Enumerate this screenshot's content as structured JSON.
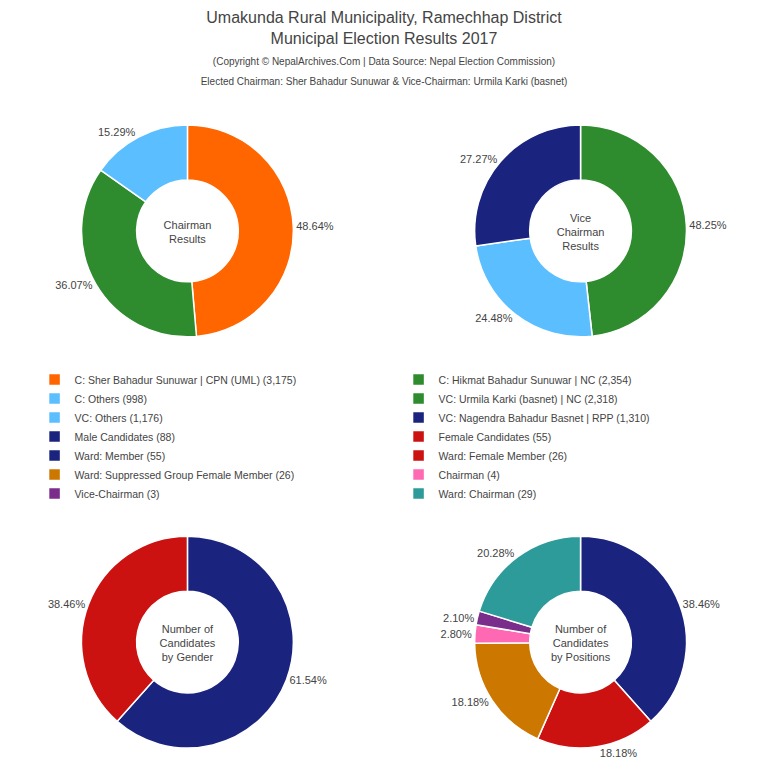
{
  "title": "Umakunda Rural Municipality, Ramechhap District\nMunicipal Election Results 2017",
  "subtitle": "(Copyright © NepalArchives.Com | Data Source: Nepal Election Commission)\nElected Chairman: Sher Bahadur Sunuwar & Vice-Chairman: Urmila Karki (basnet)",
  "legend": "center",
  "chart_data": [
    {
      "type": "pie",
      "title": "Chairman\nResults",
      "categories": [
        "C: Sher Bahadur Sunuwar | CPN (UML) (3,175)",
        "C: Hikmat Bahadur Sunuwar | NC (2,354)",
        "C: Others (998)"
      ],
      "values": [
        48.64,
        36.07,
        15.29
      ],
      "value_labels": [
        "48.64%",
        "36.07%",
        "15.29%"
      ],
      "colors": [
        "#ff6600",
        "#2e8b2e",
        "#5bbfff"
      ],
      "data_labels": true
    },
    {
      "type": "pie",
      "title": "Vice\nChairman\nResults",
      "categories": [
        "VC: Urmila Karki (basnet) | NC (2,318)",
        "VC: Others (1,176)",
        "VC: Nagendra Bahadur Basnet | RPP (1,310)"
      ],
      "values": [
        48.25,
        24.48,
        27.27
      ],
      "value_labels": [
        "48.25%",
        "24.48%",
        "27.27%"
      ],
      "colors": [
        "#2e8b2e",
        "#5bbfff",
        "#1a237e"
      ],
      "data_labels": true
    },
    {
      "type": "pie",
      "title": "Number of\nCandidates\nby Gender",
      "categories": [
        "Male Candidates (88)",
        "Female Candidates (55)"
      ],
      "values": [
        61.54,
        38.46
      ],
      "value_labels": [
        "61.54%",
        "38.46%"
      ],
      "colors": [
        "#1a237e",
        "#cc1111"
      ],
      "data_labels": true
    },
    {
      "type": "pie",
      "title": "Number of\nCandidates\nby Positions",
      "categories": [
        "Ward: Member (55)",
        "Ward: Female Member (26)",
        "Ward: Suppressed Group Female Member (26)",
        "Chairman (4)",
        "Vice-Chairman (3)",
        "Ward: Chairman (29)"
      ],
      "values": [
        38.46,
        18.18,
        18.18,
        2.8,
        2.1,
        20.28
      ],
      "value_labels": [
        "38.46%",
        "18.18%",
        "18.18%",
        "2.80%",
        "2.10%",
        "20.28%"
      ],
      "colors": [
        "#1a237e",
        "#cc1111",
        "#cc7700",
        "#ff69b4",
        "#7b2d8b",
        "#2e9b9b"
      ],
      "data_labels": true
    }
  ]
}
